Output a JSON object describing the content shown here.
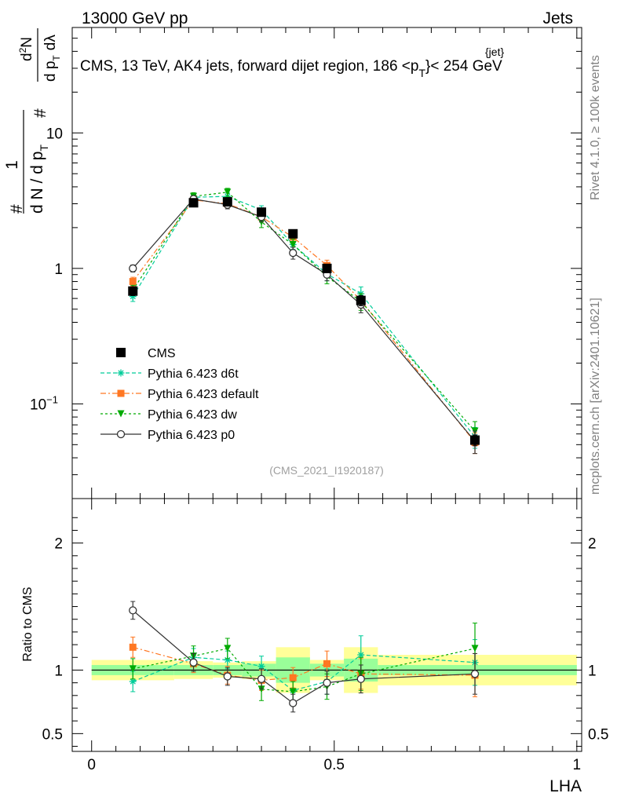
{
  "header": {
    "energy_label": "13000 GeV pp",
    "process_label": "Jets",
    "plot_title": "CMS, 13 TeV, AK4 jets, forward dijet region, 186 <p",
    "plot_title_sup": "{jet}",
    "plot_title_sub": "T",
    "plot_title_end": "}< 254 GeV",
    "analysis_id": "(CMS_2021_I1920187)",
    "side_rivet": "Rivet 4.1.0, ≥ 100k events",
    "side_mcplots": "mcplots.cern.ch [arXiv:2401.10621]"
  },
  "ylabel_main": {
    "hash1": "#",
    "one": "1",
    "dn_dpt": "d N / d p",
    "t_sub": "T",
    "hash2": "#",
    "d2n": "d",
    "d2n_sup": "2",
    "d2n_end": "N",
    "dpt_dlambda": "d p",
    "dpt_sub": "T",
    "dlambda": "dλ"
  },
  "chart_data": [
    {
      "type": "scatter",
      "panel": "main",
      "yscale": "log",
      "xlim": [
        -0.04,
        1.01
      ],
      "ylim": [
        0.02,
        60
      ],
      "y_ticks": [
        {
          "value": 0.1,
          "label": "10",
          "sup": "−1"
        },
        {
          "value": 1,
          "label": "1",
          "sup": ""
        },
        {
          "value": 10,
          "label": "10",
          "sup": ""
        }
      ],
      "legend_position": "lower-left",
      "series": [
        {
          "name": "CMS",
          "color": "#000000",
          "marker": "square",
          "style": "none",
          "x": [
            0.085,
            0.21,
            0.28,
            0.35,
            0.415,
            0.485,
            0.555,
            0.79
          ],
          "y": [
            0.68,
            3.05,
            3.1,
            2.6,
            1.8,
            1.0,
            0.58,
            0.054
          ],
          "err": [
            0.05,
            0.15,
            0.15,
            0.14,
            0.1,
            0.07,
            0.05,
            0.005
          ]
        },
        {
          "name": "Pythia 6.423 d6t",
          "color": "#00cc99",
          "marker": "asterisk",
          "style": "dashed",
          "x": [
            0.085,
            0.21,
            0.28,
            0.35,
            0.415,
            0.485,
            0.555,
            0.79
          ],
          "y": [
            0.62,
            3.35,
            3.4,
            2.7,
            1.5,
            0.91,
            0.65,
            0.057
          ],
          "err": [
            0.05,
            0.2,
            0.2,
            0.2,
            0.12,
            0.1,
            0.08,
            0.01
          ]
        },
        {
          "name": "Pythia 6.423 default",
          "color": "#ff7722",
          "marker": "square",
          "style": "dashdot",
          "x": [
            0.085,
            0.21,
            0.28,
            0.35,
            0.415,
            0.485,
            0.555,
            0.79
          ],
          "y": [
            0.8,
            3.2,
            3.0,
            2.4,
            1.7,
            1.05,
            0.58,
            0.052
          ],
          "err": [
            0.06,
            0.2,
            0.2,
            0.2,
            0.14,
            0.1,
            0.07,
            0.009
          ]
        },
        {
          "name": "Pythia 6.423 dw",
          "color": "#00aa00",
          "marker": "triangle-down",
          "style": "dotted",
          "x": [
            0.085,
            0.21,
            0.28,
            0.35,
            0.415,
            0.485,
            0.555,
            0.79
          ],
          "y": [
            0.69,
            3.4,
            3.65,
            2.2,
            1.5,
            0.87,
            0.57,
            0.063
          ],
          "err": [
            0.06,
            0.22,
            0.25,
            0.2,
            0.14,
            0.1,
            0.08,
            0.011
          ]
        },
        {
          "name": "Pythia 6.423 p0",
          "color": "#333333",
          "marker": "circle-open",
          "style": "solid",
          "x": [
            0.085,
            0.21,
            0.28,
            0.35,
            0.415,
            0.485,
            0.555,
            0.79
          ],
          "y": [
            1.0,
            3.25,
            2.95,
            2.4,
            1.3,
            0.9,
            0.54,
            0.053
          ],
          "err": [
            0.06,
            0.2,
            0.2,
            0.2,
            0.13,
            0.09,
            0.07,
            0.01
          ]
        }
      ]
    },
    {
      "type": "scatter",
      "panel": "ratio",
      "ylabel": "Ratio to CMS",
      "xlabel": "LHA",
      "yscale": "linear",
      "xlim": [
        -0.04,
        1.01
      ],
      "ylim": [
        0.36,
        2.35
      ],
      "x_ticks": [
        {
          "value": 0,
          "label": "0"
        },
        {
          "value": 0.5,
          "label": "0.5"
        },
        {
          "value": 1,
          "label": "1"
        }
      ],
      "y_ticks": [
        {
          "value": 0.5,
          "label": "0.5"
        },
        {
          "value": 1,
          "label": "1"
        },
        {
          "value": 2,
          "label": "2"
        }
      ],
      "bands": [
        {
          "x0": 0.0,
          "x1": 0.17,
          "stat": 0.04,
          "total": 0.08
        },
        {
          "x0": 0.17,
          "x1": 0.25,
          "stat": 0.04,
          "total": 0.07
        },
        {
          "x0": 0.25,
          "x1": 0.31,
          "stat": 0.04,
          "total": 0.06
        },
        {
          "x0": 0.31,
          "x1": 0.38,
          "stat": 0.05,
          "total": 0.07
        },
        {
          "x0": 0.38,
          "x1": 0.45,
          "stat": 0.1,
          "total": 0.18
        },
        {
          "x0": 0.45,
          "x1": 0.52,
          "stat": 0.05,
          "total": 0.08
        },
        {
          "x0": 0.52,
          "x1": 0.59,
          "stat": 0.09,
          "total": 0.18
        },
        {
          "x0": 0.59,
          "x1": 1.0,
          "stat": 0.04,
          "total": 0.12
        }
      ],
      "series": [
        {
          "name": "Pythia 6.423 d6t",
          "color": "#00cc99",
          "marker": "asterisk",
          "style": "dashed",
          "x": [
            0.085,
            0.21,
            0.28,
            0.35,
            0.415,
            0.485,
            0.555,
            0.79
          ],
          "y": [
            0.91,
            1.1,
            1.08,
            1.03,
            0.84,
            0.91,
            1.12,
            1.06
          ],
          "err": [
            0.08,
            0.07,
            0.07,
            0.08,
            0.08,
            0.1,
            0.15,
            0.18
          ]
        },
        {
          "name": "Pythia 6.423 default",
          "color": "#ff7722",
          "marker": "square",
          "style": "dashdot",
          "x": [
            0.085,
            0.21,
            0.28,
            0.35,
            0.415,
            0.485,
            0.555,
            0.79
          ],
          "y": [
            1.18,
            1.05,
            0.96,
            0.92,
            0.94,
            1.05,
            0.97,
            0.96
          ],
          "err": [
            0.08,
            0.07,
            0.07,
            0.08,
            0.08,
            0.1,
            0.12,
            0.17
          ]
        },
        {
          "name": "Pythia 6.423 dw",
          "color": "#00aa00",
          "marker": "triangle-down",
          "style": "dotted",
          "x": [
            0.085,
            0.21,
            0.28,
            0.35,
            0.415,
            0.485,
            0.555,
            0.79
          ],
          "y": [
            1.01,
            1.11,
            1.17,
            0.85,
            0.83,
            0.87,
            0.97,
            1.17
          ],
          "err": [
            0.08,
            0.08,
            0.08,
            0.09,
            0.08,
            0.1,
            0.13,
            0.2
          ]
        },
        {
          "name": "Pythia 6.423 p0",
          "color": "#333333",
          "marker": "circle-open",
          "style": "solid",
          "x": [
            0.085,
            0.21,
            0.28,
            0.35,
            0.415,
            0.485,
            0.555,
            0.79
          ],
          "y": [
            1.47,
            1.06,
            0.95,
            0.93,
            0.74,
            0.9,
            0.93,
            0.97
          ],
          "err": [
            0.07,
            0.07,
            0.07,
            0.08,
            0.07,
            0.09,
            0.11,
            0.16
          ]
        }
      ]
    }
  ]
}
